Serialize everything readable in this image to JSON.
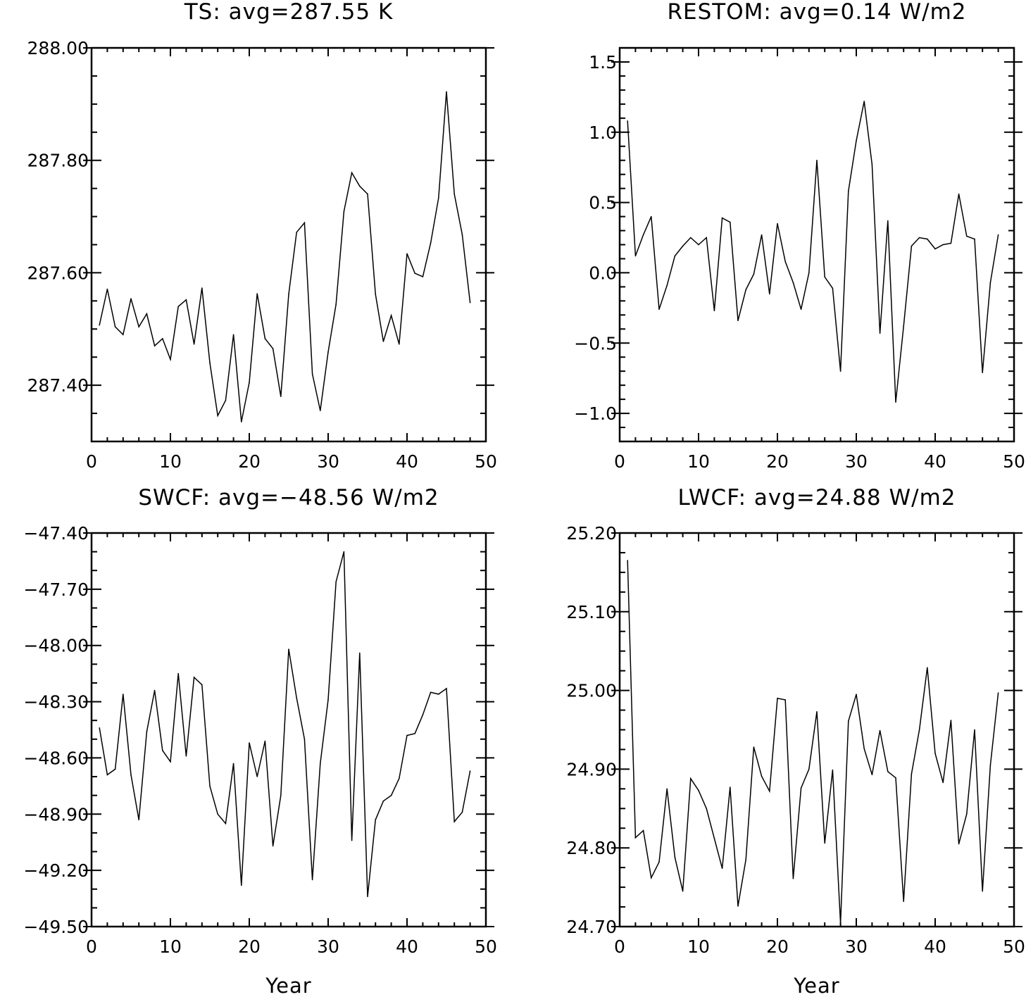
{
  "chart_data": [
    {
      "type": "line",
      "title": "TS: avg=287.55 K",
      "xlabel": "",
      "ylabel": "",
      "xlim": [
        0,
        50
      ],
      "ylim": [
        287.3,
        288.0
      ],
      "xticks": [
        0,
        10,
        20,
        30,
        40,
        50
      ],
      "xtick_labels": [
        "0",
        "10",
        "20",
        "30",
        "40",
        "50"
      ],
      "yticks": [
        287.4,
        287.6,
        287.8,
        288.0
      ],
      "ytick_labels": [
        "287.40",
        "287.60",
        "287.80",
        "288.00"
      ],
      "y_minor_step": 0.05,
      "grid": false,
      "x": [
        1,
        2,
        3,
        4,
        5,
        6,
        7,
        8,
        9,
        10,
        11,
        12,
        13,
        14,
        15,
        16,
        17,
        18,
        19,
        20,
        21,
        22,
        23,
        24,
        25,
        26,
        27,
        28,
        29,
        30,
        31,
        32,
        33,
        34,
        35,
        36,
        37,
        38,
        39,
        40,
        41,
        42,
        43,
        44,
        45,
        46,
        47,
        48
      ],
      "values": [
        287.507,
        287.571,
        287.504,
        287.49,
        287.554,
        287.504,
        287.527,
        287.47,
        287.483,
        287.446,
        287.54,
        287.552,
        287.473,
        287.573,
        287.44,
        287.346,
        287.373,
        287.49,
        287.335,
        287.405,
        287.563,
        287.483,
        287.465,
        287.38,
        287.562,
        287.672,
        287.689,
        287.42,
        287.355,
        287.459,
        287.544,
        287.709,
        287.778,
        287.754,
        287.74,
        287.562,
        287.478,
        287.524,
        287.473,
        287.634,
        287.599,
        287.593,
        287.653,
        287.733,
        287.922,
        287.74,
        287.668,
        287.547
      ]
    },
    {
      "type": "line",
      "title": "RESTOM: avg=0.14 W/m2",
      "xlabel": "",
      "ylabel": "",
      "xlim": [
        0,
        50
      ],
      "ylim": [
        -1.2,
        1.6
      ],
      "xticks": [
        0,
        10,
        20,
        30,
        40,
        50
      ],
      "xtick_labels": [
        "0",
        "10",
        "20",
        "30",
        "40",
        "50"
      ],
      "yticks": [
        -1.0,
        -0.5,
        0.0,
        0.5,
        1.0,
        1.5
      ],
      "ytick_labels": [
        "−1.0",
        "−0.5",
        "0.0",
        "0.5",
        "1.0",
        "1.5"
      ],
      "y_minor_step": 0.1,
      "grid": false,
      "x": [
        1,
        2,
        3,
        4,
        5,
        6,
        7,
        8,
        9,
        10,
        11,
        12,
        13,
        14,
        15,
        16,
        17,
        18,
        19,
        20,
        21,
        22,
        23,
        24,
        25,
        26,
        27,
        28,
        29,
        30,
        31,
        32,
        33,
        34,
        35,
        36,
        37,
        38,
        39,
        40,
        41,
        42,
        43,
        44,
        45,
        46,
        47,
        48
      ],
      "values": [
        1.08,
        0.12,
        0.27,
        0.4,
        -0.26,
        -0.09,
        0.12,
        0.19,
        0.25,
        0.2,
        0.25,
        -0.27,
        0.39,
        0.36,
        -0.34,
        -0.12,
        -0.01,
        0.27,
        -0.15,
        0.35,
        0.08,
        -0.07,
        -0.26,
        0.0,
        0.8,
        -0.03,
        -0.11,
        -0.7,
        0.58,
        0.94,
        1.22,
        0.77,
        -0.43,
        0.37,
        -0.92,
        -0.38,
        0.19,
        0.25,
        0.24,
        0.17,
        0.2,
        0.21,
        0.56,
        0.26,
        0.24,
        -0.71,
        -0.07,
        0.27
      ]
    },
    {
      "type": "line",
      "title": "SWCF: avg=−48.56 W/m2",
      "xlabel": "Year",
      "ylabel": "",
      "xlim": [
        0,
        50
      ],
      "ylim": [
        -49.5,
        -47.4
      ],
      "xticks": [
        0,
        10,
        20,
        30,
        40,
        50
      ],
      "xtick_labels": [
        "0",
        "10",
        "20",
        "30",
        "40",
        "50"
      ],
      "yticks": [
        -49.5,
        -49.2,
        -48.9,
        -48.6,
        -48.3,
        -48.0,
        -47.7,
        -47.4
      ],
      "ytick_labels": [
        "−49.50",
        "−49.20",
        "−48.90",
        "−48.60",
        "−48.30",
        "−48.00",
        "−47.70",
        "−47.40"
      ],
      "y_minor_step": 0.1,
      "grid": false,
      "x": [
        1,
        2,
        3,
        4,
        5,
        6,
        7,
        8,
        9,
        10,
        11,
        12,
        13,
        14,
        15,
        16,
        17,
        18,
        19,
        20,
        21,
        22,
        23,
        24,
        25,
        26,
        27,
        28,
        29,
        30,
        31,
        32,
        33,
        34,
        35,
        36,
        37,
        38,
        39,
        40,
        41,
        42,
        43,
        44,
        45,
        46,
        47,
        48
      ],
      "values": [
        -48.44,
        -48.69,
        -48.66,
        -48.26,
        -48.69,
        -48.93,
        -48.46,
        -48.24,
        -48.56,
        -48.62,
        -48.15,
        -48.59,
        -48.17,
        -48.21,
        -48.75,
        -48.9,
        -48.95,
        -48.63,
        -49.28,
        -48.52,
        -48.7,
        -48.51,
        -49.07,
        -48.8,
        -48.02,
        -48.28,
        -48.5,
        -49.25,
        -48.63,
        -48.29,
        -47.66,
        -47.5,
        -49.04,
        -48.04,
        -49.34,
        -48.93,
        -48.83,
        -48.8,
        -48.71,
        -48.48,
        -48.47,
        -48.37,
        -48.25,
        -48.26,
        -48.23,
        -48.94,
        -48.89,
        -48.67
      ]
    },
    {
      "type": "line",
      "title": "LWCF: avg=24.88 W/m2",
      "xlabel": "Year",
      "ylabel": "",
      "xlim": [
        0,
        50
      ],
      "ylim": [
        24.7,
        25.2
      ],
      "xticks": [
        0,
        10,
        20,
        30,
        40,
        50
      ],
      "xtick_labels": [
        "0",
        "10",
        "20",
        "30",
        "40",
        "50"
      ],
      "yticks": [
        24.7,
        24.8,
        24.9,
        25.0,
        25.1,
        25.2
      ],
      "ytick_labels": [
        "24.70",
        "24.80",
        "24.90",
        "25.00",
        "25.10",
        "25.20"
      ],
      "y_minor_step": 0.025,
      "grid": false,
      "x": [
        1,
        2,
        3,
        4,
        5,
        6,
        7,
        8,
        9,
        10,
        11,
        12,
        13,
        14,
        15,
        16,
        17,
        18,
        19,
        20,
        21,
        22,
        23,
        24,
        25,
        26,
        27,
        28,
        29,
        30,
        31,
        32,
        33,
        34,
        35,
        36,
        37,
        38,
        39,
        40,
        41,
        42,
        43,
        44,
        45,
        46,
        47,
        48
      ],
      "values": [
        25.165,
        24.813,
        24.822,
        24.762,
        24.782,
        24.875,
        24.788,
        24.745,
        24.888,
        24.873,
        24.85,
        24.812,
        24.774,
        24.877,
        24.726,
        24.785,
        24.928,
        24.891,
        24.872,
        24.99,
        24.988,
        24.761,
        24.876,
        24.9,
        24.973,
        24.806,
        24.899,
        24.704,
        24.961,
        24.995,
        24.926,
        24.893,
        24.949,
        24.897,
        24.889,
        24.732,
        24.894,
        24.95,
        25.029,
        24.92,
        24.883,
        24.962,
        24.805,
        24.843,
        24.95,
        24.745,
        24.905,
        24.997
      ]
    }
  ]
}
